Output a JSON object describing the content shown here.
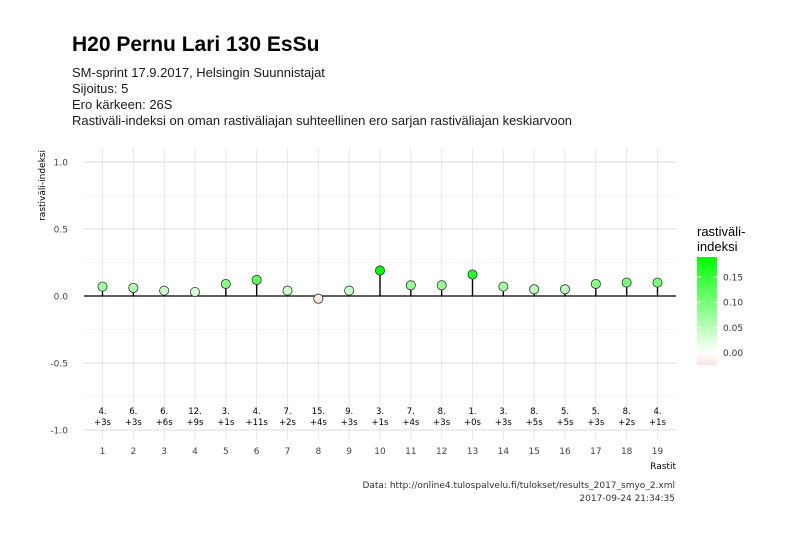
{
  "title": "H20 Pernu Lari 130 EsSu",
  "subtitle_lines": [
    "SM-sprint 17.9.2017, Helsingin Suunnistajat",
    "Sijoitus: 5",
    "Ero kärkeen: 26S",
    "Rastiväli-indeksi on oman rastiväliajan suhteellinen ero sarjan rastiväliajan keskiarvoon"
  ],
  "caption_lines": [
    "Data: http://online4.tulospalvelu.fi/tulokset/results_2017_smyo_2.xml",
    "2017-09-24 21:34:35"
  ],
  "legend": {
    "title_line1": "rastiväli-",
    "title_line2": "indeksi",
    "ticks": [
      0.15,
      0.1,
      0.05,
      0.0
    ],
    "tick_labels": [
      "0.15",
      "0.10",
      "0.05",
      "0.00"
    ],
    "colors": {
      "low": "#fbe4dc",
      "zero": "#ffffff",
      "high": "#00ff00"
    }
  },
  "chart_data": {
    "type": "scatter",
    "xlabel": "Rastit",
    "ylabel": "rastiväli-indeksi",
    "xlim": [
      0.4,
      19.6
    ],
    "ylim": [
      -1.0,
      1.0
    ],
    "y_ticks": [
      -1.0,
      -0.5,
      0.0,
      0.5,
      1.0
    ],
    "y_tick_labels": [
      "-1.0",
      "-0.5",
      "0.0",
      "0.5",
      "1.0"
    ],
    "x": [
      1,
      2,
      3,
      4,
      5,
      6,
      7,
      8,
      9,
      10,
      11,
      12,
      13,
      14,
      15,
      16,
      17,
      18,
      19
    ],
    "x_tick_labels": [
      "1",
      "2",
      "3",
      "4",
      "5",
      "6",
      "7",
      "8",
      "9",
      "10",
      "11",
      "12",
      "13",
      "14",
      "15",
      "16",
      "17",
      "18",
      "19"
    ],
    "values": [
      0.07,
      0.06,
      0.04,
      0.03,
      0.09,
      0.12,
      0.04,
      -0.02,
      0.04,
      0.19,
      0.08,
      0.08,
      0.16,
      0.07,
      0.05,
      0.05,
      0.09,
      0.1,
      0.1
    ],
    "annotations_rank": [
      "4.",
      "6.",
      "6.",
      "12.",
      "3.",
      "4.",
      "7.",
      "15.",
      "9.",
      "3.",
      "7.",
      "8.",
      "1.",
      "3.",
      "8.",
      "5.",
      "5.",
      "8.",
      "4."
    ],
    "annotations_diff": [
      "+3s",
      "+3s",
      "+6s",
      "+9s",
      "+1s",
      "+11s",
      "+2s",
      "+4s",
      "+3s",
      "+1s",
      "+4s",
      "+3s",
      "+0s",
      "+3s",
      "+5s",
      "+5s",
      "+3s",
      "+2s",
      "+1s"
    ],
    "grid": true,
    "legend_position": "right"
  }
}
